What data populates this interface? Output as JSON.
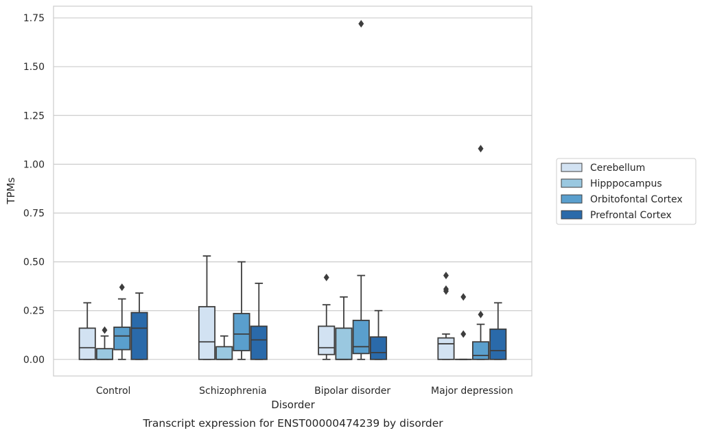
{
  "chart_data": {
    "type": "boxplot",
    "title": "",
    "caption": "Transcript expression for ENST00000474239 by disorder",
    "xlabel": "Disorder",
    "ylabel": "TPMs",
    "ylim": [
      -0.085,
      1.81
    ],
    "yticks": [
      0.0,
      0.25,
      0.5,
      0.75,
      1.0,
      1.25,
      1.5,
      1.75
    ],
    "ytick_labels": [
      "0.00",
      "0.25",
      "0.50",
      "0.75",
      "1.00",
      "1.25",
      "1.50",
      "1.75"
    ],
    "categories": [
      "Control",
      "Schizophrenia",
      "Bipolar disorder",
      "Major depression"
    ],
    "grid": "horizontal",
    "legend_position": "right",
    "series": [
      {
        "name": "Cerebellum",
        "color": "#d2e2f2",
        "boxes": [
          {
            "whislo": 0.0,
            "q1": 0.0,
            "med": 0.06,
            "q3": 0.16,
            "whishi": 0.29,
            "fliers": []
          },
          {
            "whislo": 0.0,
            "q1": 0.0,
            "med": 0.09,
            "q3": 0.27,
            "whishi": 0.53,
            "fliers": []
          },
          {
            "whislo": 0.0,
            "q1": 0.025,
            "med": 0.06,
            "q3": 0.17,
            "whishi": 0.28,
            "fliers": [
              0.42
            ]
          },
          {
            "whislo": 0.0,
            "q1": 0.0,
            "med": 0.08,
            "q3": 0.11,
            "whishi": 0.13,
            "fliers": [
              0.43,
              0.36,
              0.35
            ]
          }
        ]
      },
      {
        "name": "Hipppocampus",
        "color": "#9ac8e0",
        "boxes": [
          {
            "whislo": 0.0,
            "q1": 0.0,
            "med": 0.0,
            "q3": 0.055,
            "whishi": 0.12,
            "fliers": [
              0.15
            ]
          },
          {
            "whislo": 0.0,
            "q1": 0.0,
            "med": 0.0,
            "q3": 0.065,
            "whishi": 0.12,
            "fliers": []
          },
          {
            "whislo": 0.0,
            "q1": 0.0,
            "med": 0.0,
            "q3": 0.16,
            "whishi": 0.32,
            "fliers": []
          },
          {
            "whislo": 0.0,
            "q1": 0.0,
            "med": 0.0,
            "q3": 0.0,
            "whishi": 0.0,
            "fliers": [
              0.32,
              0.13
            ]
          }
        ]
      },
      {
        "name": "Orbitofontal Cortex",
        "color": "#5a9fcd",
        "boxes": [
          {
            "whislo": 0.0,
            "q1": 0.05,
            "med": 0.12,
            "q3": 0.165,
            "whishi": 0.31,
            "fliers": [
              0.37
            ]
          },
          {
            "whislo": 0.0,
            "q1": 0.045,
            "med": 0.13,
            "q3": 0.235,
            "whishi": 0.5,
            "fliers": []
          },
          {
            "whislo": 0.0,
            "q1": 0.03,
            "med": 0.065,
            "q3": 0.2,
            "whishi": 0.43,
            "fliers": [
              1.72
            ]
          },
          {
            "whislo": 0.0,
            "q1": 0.0,
            "med": 0.02,
            "q3": 0.09,
            "whishi": 0.18,
            "fliers": [
              0.23,
              1.08
            ]
          }
        ]
      },
      {
        "name": "Prefrontal Cortex",
        "color": "#2a6aaa",
        "boxes": [
          {
            "whislo": 0.0,
            "q1": 0.0,
            "med": 0.16,
            "q3": 0.24,
            "whishi": 0.34,
            "fliers": []
          },
          {
            "whislo": 0.0,
            "q1": 0.0,
            "med": 0.1,
            "q3": 0.17,
            "whishi": 0.39,
            "fliers": []
          },
          {
            "whislo": 0.0,
            "q1": 0.0,
            "med": 0.035,
            "q3": 0.115,
            "whishi": 0.25,
            "fliers": []
          },
          {
            "whislo": 0.0,
            "q1": 0.0,
            "med": 0.045,
            "q3": 0.155,
            "whishi": 0.29,
            "fliers": []
          }
        ]
      }
    ]
  }
}
